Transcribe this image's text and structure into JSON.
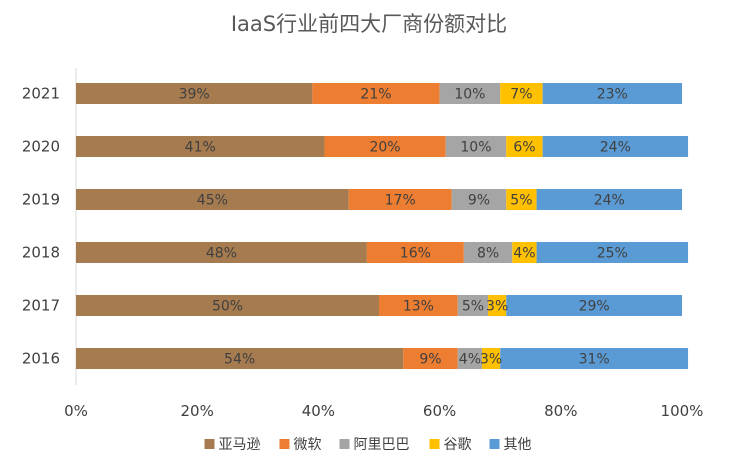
{
  "chart_data": {
    "type": "bar",
    "orientation": "horizontal",
    "stacked": true,
    "percent": true,
    "title": "IaaS行业前四大厂商份额对比",
    "categories": [
      "2021",
      "2020",
      "2019",
      "2018",
      "2017",
      "2016"
    ],
    "series": [
      {
        "name": "亚马逊",
        "color": "#a57b4f",
        "values": [
          39,
          41,
          45,
          48,
          50,
          54
        ]
      },
      {
        "name": "微软",
        "color": "#ed7d31",
        "values": [
          21,
          20,
          17,
          16,
          13,
          9
        ]
      },
      {
        "name": "阿里巴巴",
        "color": "#a5a5a5",
        "values": [
          10,
          10,
          9,
          8,
          5,
          4
        ]
      },
      {
        "name": "谷歌",
        "color": "#ffc000",
        "values": [
          7,
          6,
          5,
          4,
          3,
          3
        ]
      },
      {
        "name": "其他",
        "color": "#5b9bd5",
        "values": [
          23,
          24,
          24,
          25,
          29,
          31
        ]
      }
    ],
    "data_labels": [
      [
        "39%",
        "21%",
        "10%",
        "7%",
        "23%"
      ],
      [
        "41%",
        "20%",
        "10%",
        "6%",
        "24%"
      ],
      [
        "45%",
        "17%",
        "9%",
        "5%",
        "24%"
      ],
      [
        "48%",
        "16%",
        "8%",
        "4%",
        "25%"
      ],
      [
        "50%",
        "13%",
        "5%",
        "3%",
        "29%"
      ],
      [
        "54%",
        "9%",
        "4%",
        "3%",
        "31%"
      ]
    ],
    "xlim": [
      0,
      100
    ],
    "xticks": [
      "0%",
      "20%",
      "40%",
      "60%",
      "80%",
      "100%"
    ],
    "grid": false,
    "legend_position": "bottom"
  }
}
